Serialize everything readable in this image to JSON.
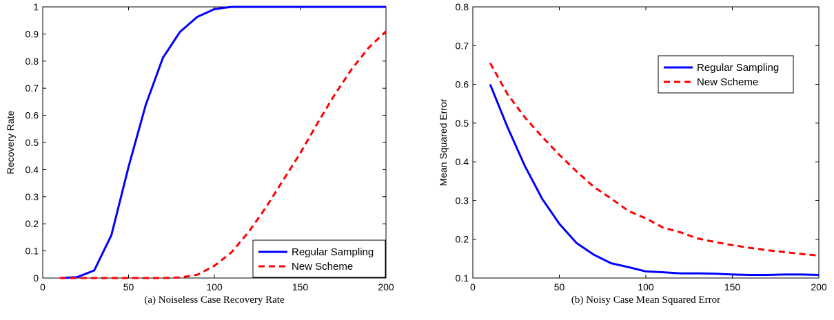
{
  "colors": {
    "regular": "#0000ff",
    "new": "#ff0000",
    "axis": "#000000",
    "background": "#ffffff"
  },
  "chart_data": [
    {
      "type": "line",
      "title": "",
      "caption": "(a) Noiseless Case Recovery Rate",
      "xlabel": "",
      "ylabel": "Recovery Rate",
      "xlim": [
        0,
        200
      ],
      "ylim": [
        0,
        1
      ],
      "xticks": [
        "0",
        "50",
        "100",
        "150",
        "200"
      ],
      "yticks": [
        "0",
        "0.1",
        "0.2",
        "0.3",
        "0.4",
        "0.5",
        "0.6",
        "0.7",
        "0.8",
        "0.9",
        "1"
      ],
      "grid": false,
      "legend_position": "bottom-right",
      "series": [
        {
          "name": "Regular Sampling",
          "style": "solid",
          "x": [
            10,
            20,
            30,
            40,
            50,
            60,
            70,
            80,
            90,
            100,
            110,
            120,
            130,
            140,
            150,
            160,
            170,
            180,
            190,
            200
          ],
          "y": [
            0,
            0.003,
            0.028,
            0.158,
            0.41,
            0.638,
            0.812,
            0.908,
            0.963,
            0.992,
            1,
            1,
            1,
            1,
            1,
            1,
            1,
            1,
            1,
            1
          ]
        },
        {
          "name": "New Scheme",
          "style": "dashed",
          "x": [
            10,
            20,
            30,
            40,
            50,
            60,
            70,
            80,
            90,
            100,
            110,
            120,
            130,
            140,
            150,
            160,
            170,
            180,
            190,
            200
          ],
          "y": [
            0,
            0,
            0,
            0,
            0,
            0,
            0,
            0.002,
            0.012,
            0.045,
            0.095,
            0.17,
            0.26,
            0.36,
            0.46,
            0.57,
            0.675,
            0.77,
            0.85,
            0.91
          ]
        }
      ]
    },
    {
      "type": "line",
      "title": "",
      "caption": "(b) Noisy Case Mean Squared Error",
      "xlabel": "",
      "ylabel": "Mean Squared Error",
      "xlim": [
        0,
        200
      ],
      "ylim": [
        0.1,
        0.8
      ],
      "xticks": [
        "0",
        "50",
        "100",
        "150",
        "200"
      ],
      "yticks": [
        "0.1",
        "0.2",
        "0.3",
        "0.4",
        "0.5",
        "0.6",
        "0.7",
        "0.8"
      ],
      "grid": false,
      "legend_position": "top-right",
      "series": [
        {
          "name": "Regular Sampling",
          "style": "solid",
          "x": [
            10,
            20,
            30,
            40,
            50,
            60,
            70,
            80,
            90,
            100,
            110,
            120,
            130,
            140,
            150,
            160,
            170,
            180,
            190,
            200
          ],
          "y": [
            0.6,
            0.49,
            0.39,
            0.305,
            0.24,
            0.19,
            0.16,
            0.138,
            0.128,
            0.117,
            0.115,
            0.112,
            0.112,
            0.111,
            0.109,
            0.108,
            0.108,
            0.109,
            0.109,
            0.108
          ]
        },
        {
          "name": "New Scheme",
          "style": "dashed",
          "x": [
            10,
            20,
            30,
            40,
            50,
            60,
            70,
            80,
            90,
            100,
            110,
            120,
            130,
            140,
            150,
            160,
            170,
            180,
            190,
            200
          ],
          "y": [
            0.655,
            0.575,
            0.515,
            0.465,
            0.418,
            0.375,
            0.335,
            0.305,
            0.273,
            0.254,
            0.23,
            0.218,
            0.202,
            0.193,
            0.185,
            0.178,
            0.172,
            0.167,
            0.162,
            0.158
          ]
        }
      ]
    }
  ]
}
